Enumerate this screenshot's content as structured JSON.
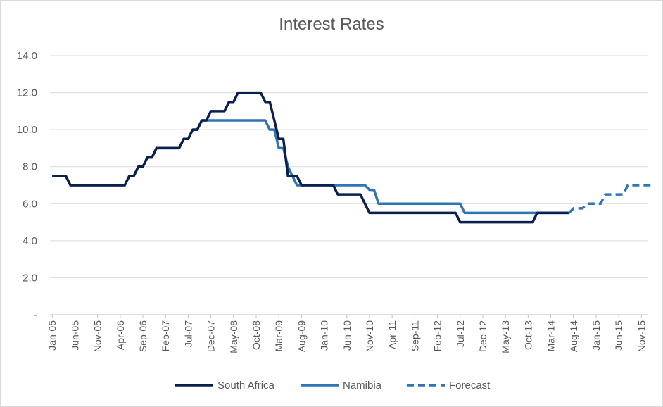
{
  "chart_data": {
    "type": "line",
    "title": "Interest Rates",
    "xlabel": "",
    "ylabel": "",
    "ylim": [
      0,
      14
    ],
    "y_ticks": [
      "-",
      "2.0",
      "4.0",
      "6.0",
      "8.0",
      "10.0",
      "12.0",
      "14.0"
    ],
    "x_ticks": [
      "Jan-05",
      "Jun-05",
      "Nov-05",
      "Apr-06",
      "Sep-06",
      "Feb-07",
      "Jul-07",
      "Dec-07",
      "May-08",
      "Oct-08",
      "Mar-09",
      "Aug-09",
      "Jan-10",
      "Jun-10",
      "Nov-10",
      "Apr-11",
      "Sep-11",
      "Feb-12",
      "Jul-12",
      "Dec-12",
      "May-13",
      "Oct-13",
      "Mar-14",
      "Aug-14",
      "Jan-15",
      "Jun-15",
      "Nov-15"
    ],
    "grid": true,
    "legend_position": "bottom",
    "colors": {
      "south_africa": "#0b1f4f",
      "namibia": "#2e75b6",
      "forecast": "#2e75b6"
    },
    "series": [
      {
        "name": "South Africa",
        "style": "solid",
        "points": [
          [
            "Jan-05",
            7.5
          ],
          [
            "Apr-05",
            7.5
          ],
          [
            "May-05",
            7.0
          ],
          [
            "May-06",
            7.0
          ],
          [
            "Jun-06",
            7.5
          ],
          [
            "Jul-06",
            7.5
          ],
          [
            "Aug-06",
            8.0
          ],
          [
            "Sep-06",
            8.0
          ],
          [
            "Oct-06",
            8.5
          ],
          [
            "Nov-06",
            8.5
          ],
          [
            "Dec-06",
            9.0
          ],
          [
            "May-07",
            9.0
          ],
          [
            "Jun-07",
            9.5
          ],
          [
            "Jul-07",
            9.5
          ],
          [
            "Aug-07",
            10.0
          ],
          [
            "Sep-07",
            10.0
          ],
          [
            "Oct-07",
            10.5
          ],
          [
            "Nov-07",
            10.5
          ],
          [
            "Dec-07",
            11.0
          ],
          [
            "Mar-08",
            11.0
          ],
          [
            "Apr-08",
            11.5
          ],
          [
            "May-08",
            11.5
          ],
          [
            "Jun-08",
            12.0
          ],
          [
            "Nov-08",
            12.0
          ],
          [
            "Dec-08",
            11.5
          ],
          [
            "Jan-09",
            11.5
          ],
          [
            "Feb-09",
            10.5
          ],
          [
            "Mar-09",
            9.5
          ],
          [
            "Apr-09",
            9.5
          ],
          [
            "May-09",
            7.5
          ],
          [
            "Jul-09",
            7.5
          ],
          [
            "Aug-09",
            7.0
          ],
          [
            "Mar-10",
            7.0
          ],
          [
            "Apr-10",
            6.5
          ],
          [
            "Sep-10",
            6.5
          ],
          [
            "Oct-10",
            6.0
          ],
          [
            "Nov-10",
            5.5
          ],
          [
            "Jun-12",
            5.5
          ],
          [
            "Jul-12",
            5.0
          ],
          [
            "Nov-13",
            5.0
          ],
          [
            "Dec-13",
            5.5
          ],
          [
            "Jul-14",
            5.5
          ]
        ]
      },
      {
        "name": "Namibia",
        "style": "solid",
        "points": [
          [
            "Jan-05",
            7.5
          ],
          [
            "Apr-05",
            7.5
          ],
          [
            "May-05",
            7.0
          ],
          [
            "May-06",
            7.0
          ],
          [
            "Jun-06",
            7.5
          ],
          [
            "Jul-06",
            7.5
          ],
          [
            "Aug-06",
            8.0
          ],
          [
            "Sep-06",
            8.0
          ],
          [
            "Oct-06",
            8.5
          ],
          [
            "Nov-06",
            8.5
          ],
          [
            "Dec-06",
            9.0
          ],
          [
            "May-07",
            9.0
          ],
          [
            "Jun-07",
            9.5
          ],
          [
            "Jul-07",
            9.5
          ],
          [
            "Aug-07",
            10.0
          ],
          [
            "Sep-07",
            10.0
          ],
          [
            "Oct-07",
            10.5
          ],
          [
            "Dec-08",
            10.5
          ],
          [
            "Jan-09",
            10.0
          ],
          [
            "Feb-09",
            10.0
          ],
          [
            "Mar-09",
            9.0
          ],
          [
            "Apr-09",
            9.0
          ],
          [
            "May-09",
            8.0
          ],
          [
            "Jun-09",
            7.5
          ],
          [
            "Jul-09",
            7.0
          ],
          [
            "Oct-10",
            7.0
          ],
          [
            "Nov-10",
            6.75
          ],
          [
            "Dec-10",
            6.75
          ],
          [
            "Jan-11",
            6.0
          ],
          [
            "Jul-12",
            6.0
          ],
          [
            "Aug-12",
            5.5
          ],
          [
            "Jul-14",
            5.5
          ]
        ]
      },
      {
        "name": "Forecast",
        "style": "dashed",
        "points": [
          [
            "Jul-14",
            5.5
          ],
          [
            "Aug-14",
            5.75
          ],
          [
            "Oct-14",
            5.75
          ],
          [
            "Nov-14",
            6.0
          ],
          [
            "Feb-15",
            6.0
          ],
          [
            "Mar-15",
            6.5
          ],
          [
            "Jul-15",
            6.5
          ],
          [
            "Aug-15",
            7.0
          ],
          [
            "Jan-16",
            7.0
          ]
        ]
      }
    ]
  }
}
